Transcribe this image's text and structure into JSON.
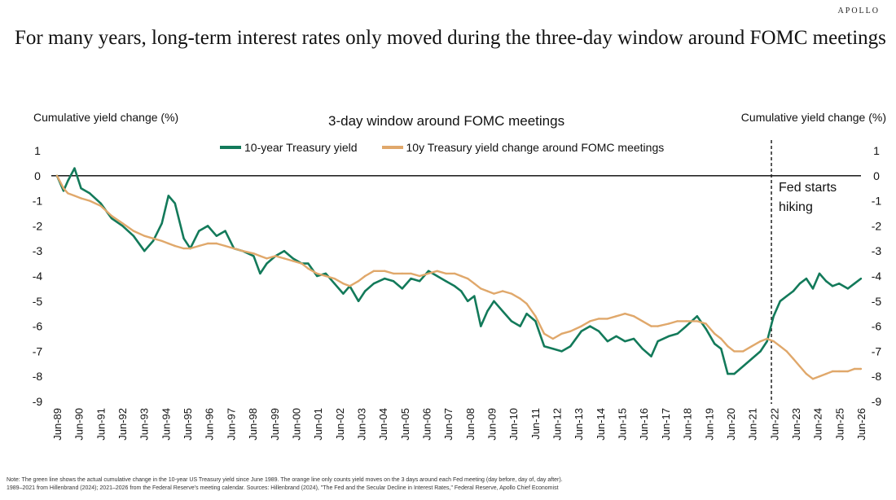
{
  "brand": "APOLLO",
  "title": "For many years, long-term interest rates only moved during the three-day window around FOMC meetings",
  "note": "Note: The green line shows the actual cumulative change in the 10-year US Treasury yield since June 1989. The orange line only counts yield moves on the 3 days around each Fed meeting (day before, day of, day after).",
  "note2": "1989–2021 from Hillenbrand (2024); 2021–2026 from the Federal Reserve's meeting calendar. Sources: Hillenbrand (2024), \"The Fed and the Secular Decline in Interest Rates,\" Federal Reserve, Apollo Chief Economist",
  "colors": {
    "green": "#137a5a",
    "orange": "#e0a86b",
    "axis": "#000000"
  },
  "chart_data": {
    "type": "line",
    "title": "3-day window around FOMC meetings",
    "ylabel_left": "Cumulative yield change (%)",
    "ylabel_right": "Cumulative yield change (%)",
    "ylim": [
      -9,
      1
    ],
    "yticks": [
      1,
      0,
      -1,
      -2,
      -3,
      -4,
      -5,
      -6,
      -7,
      -8,
      -9
    ],
    "x_tick_labels": [
      "Jun-89",
      "Jun-90",
      "Jun-91",
      "Jun-92",
      "Jun-93",
      "Jun-94",
      "Jun-95",
      "Jun-96",
      "Jun-97",
      "Jun-98",
      "Jun-99",
      "Jun-00",
      "Jun-01",
      "Jun-02",
      "Jun-03",
      "Jun-04",
      "Jun-05",
      "Jun-06",
      "Jun-07",
      "Jun-08",
      "Jun-09",
      "Jun-10",
      "Jun-11",
      "Jun-12",
      "Jun-13",
      "Jun-14",
      "Jun-15",
      "Jun-16",
      "Jun-17",
      "Jun-18",
      "Jun-19",
      "Jun-20",
      "Jun-21",
      "Jun-22",
      "Jun-23",
      "Jun-24",
      "Jun-25",
      "Jun-26"
    ],
    "annotation": {
      "text_line1": "Fed starts",
      "text_line2": "hiking",
      "x": 2022.2
    },
    "legend_position": "top",
    "series": [
      {
        "name": "10-year Treasury yield",
        "color": "#137a5a",
        "x": [
          1989.5,
          1989.8,
          1990.0,
          1990.3,
          1990.6,
          1991.0,
          1991.5,
          1992.0,
          1992.5,
          1993.0,
          1993.5,
          1993.9,
          1994.3,
          1994.6,
          1994.9,
          1995.3,
          1995.6,
          1996.0,
          1996.4,
          1996.8,
          1997.2,
          1997.6,
          1998.0,
          1998.5,
          1998.8,
          1999.1,
          1999.5,
          1999.9,
          2000.3,
          2000.7,
          2001.0,
          2001.4,
          2001.8,
          2002.2,
          2002.6,
          2002.9,
          2003.3,
          2003.6,
          2004.0,
          2004.5,
          2004.9,
          2005.3,
          2005.7,
          2006.1,
          2006.5,
          2006.9,
          2007.3,
          2007.7,
          2008.0,
          2008.3,
          2008.6,
          2008.9,
          2009.2,
          2009.5,
          2009.9,
          2010.3,
          2010.7,
          2011.0,
          2011.4,
          2011.8,
          2012.2,
          2012.6,
          2013.0,
          2013.5,
          2013.9,
          2014.3,
          2014.7,
          2015.1,
          2015.5,
          2015.9,
          2016.3,
          2016.7,
          2017.0,
          2017.5,
          2017.9,
          2018.3,
          2018.8,
          2019.2,
          2019.6,
          2019.9,
          2020.2,
          2020.5,
          2020.9,
          2021.3,
          2021.7,
          2022.0,
          2022.3,
          2022.6,
          2022.9,
          2023.2,
          2023.5,
          2023.8,
          2024.1,
          2024.4,
          2024.7,
          2025.0,
          2025.3,
          2025.7,
          2026.0,
          2026.3
        ],
        "y": [
          0,
          -0.6,
          -0.2,
          0.3,
          -0.5,
          -0.7,
          -1.1,
          -1.7,
          -2.0,
          -2.4,
          -3.0,
          -2.6,
          -1.9,
          -0.8,
          -1.1,
          -2.5,
          -2.9,
          -2.2,
          -2.0,
          -2.4,
          -2.2,
          -2.9,
          -3.0,
          -3.2,
          -3.9,
          -3.5,
          -3.2,
          -3.0,
          -3.3,
          -3.5,
          -3.5,
          -4.0,
          -3.9,
          -4.3,
          -4.7,
          -4.4,
          -5.0,
          -4.6,
          -4.3,
          -4.1,
          -4.2,
          -4.5,
          -4.1,
          -4.2,
          -3.8,
          -4.0,
          -4.2,
          -4.4,
          -4.6,
          -5.0,
          -4.8,
          -6.0,
          -5.4,
          -5.0,
          -5.4,
          -5.8,
          -6.0,
          -5.5,
          -5.8,
          -6.8,
          -6.9,
          -7.0,
          -6.8,
          -6.2,
          -6.0,
          -6.2,
          -6.6,
          -6.4,
          -6.6,
          -6.5,
          -6.9,
          -7.2,
          -6.6,
          -6.4,
          -6.3,
          -6.0,
          -5.6,
          -6.1,
          -6.7,
          -6.9,
          -7.9,
          -7.9,
          -7.6,
          -7.3,
          -7.0,
          -6.6,
          -5.6,
          -5.0,
          -4.8,
          -4.6,
          -4.3,
          -4.1,
          -4.5,
          -3.9,
          -4.2,
          -4.4,
          -4.3,
          -4.5,
          -4.3,
          -4.1
        ]
      },
      {
        "name": "10y Treasury yield change around FOMC meetings",
        "color": "#e0a86b",
        "x": [
          1989.5,
          1989.8,
          1990.0,
          1990.3,
          1990.6,
          1991.0,
          1991.5,
          1992.0,
          1992.5,
          1993.0,
          1993.5,
          1993.9,
          1994.3,
          1994.6,
          1994.9,
          1995.3,
          1995.6,
          1996.0,
          1996.4,
          1996.8,
          1997.2,
          1997.6,
          1998.0,
          1998.5,
          1998.8,
          1999.1,
          1999.5,
          1999.9,
          2000.3,
          2000.7,
          2001.0,
          2001.4,
          2001.8,
          2002.2,
          2002.6,
          2002.9,
          2003.3,
          2003.6,
          2004.0,
          2004.5,
          2004.9,
          2005.3,
          2005.7,
          2006.1,
          2006.5,
          2006.9,
          2007.3,
          2007.7,
          2008.0,
          2008.3,
          2008.6,
          2008.9,
          2009.2,
          2009.5,
          2009.9,
          2010.3,
          2010.7,
          2011.0,
          2011.4,
          2011.8,
          2012.2,
          2012.6,
          2013.0,
          2013.5,
          2013.9,
          2014.3,
          2014.7,
          2015.1,
          2015.5,
          2015.9,
          2016.3,
          2016.7,
          2017.0,
          2017.5,
          2017.9,
          2018.3,
          2018.8,
          2019.2,
          2019.6,
          2019.9,
          2020.2,
          2020.5,
          2020.9,
          2021.3,
          2021.7,
          2022.0,
          2022.3,
          2022.6,
          2022.9,
          2023.2,
          2023.5,
          2023.8,
          2024.1,
          2024.4,
          2024.7,
          2025.0,
          2025.3,
          2025.7,
          2026.0,
          2026.3
        ],
        "y": [
          0,
          -0.5,
          -0.7,
          -0.8,
          -0.9,
          -1.0,
          -1.2,
          -1.6,
          -1.9,
          -2.2,
          -2.4,
          -2.5,
          -2.6,
          -2.7,
          -2.8,
          -2.9,
          -2.9,
          -2.8,
          -2.7,
          -2.7,
          -2.8,
          -2.9,
          -3.0,
          -3.1,
          -3.2,
          -3.3,
          -3.2,
          -3.3,
          -3.4,
          -3.5,
          -3.7,
          -3.9,
          -4.0,
          -4.1,
          -4.3,
          -4.4,
          -4.2,
          -4.0,
          -3.8,
          -3.8,
          -3.9,
          -3.9,
          -3.9,
          -4.0,
          -3.9,
          -3.8,
          -3.9,
          -3.9,
          -4.0,
          -4.1,
          -4.3,
          -4.5,
          -4.6,
          -4.7,
          -4.6,
          -4.7,
          -4.9,
          -5.1,
          -5.6,
          -6.3,
          -6.5,
          -6.3,
          -6.2,
          -6.0,
          -5.8,
          -5.7,
          -5.7,
          -5.6,
          -5.5,
          -5.6,
          -5.8,
          -6.0,
          -6.0,
          -5.9,
          -5.8,
          -5.8,
          -5.8,
          -5.9,
          -6.3,
          -6.5,
          -6.8,
          -7.0,
          -7.0,
          -6.8,
          -6.6,
          -6.5,
          -6.6,
          -6.8,
          -7.0,
          -7.3,
          -7.6,
          -7.9,
          -8.1,
          -8.0,
          -7.9,
          -7.8,
          -7.8,
          -7.8,
          -7.7,
          -7.7
        ]
      }
    ]
  }
}
